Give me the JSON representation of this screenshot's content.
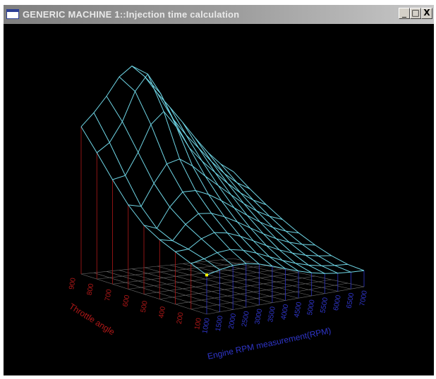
{
  "window": {
    "title": "GENERIC MACHINE 1::Injection time calculation",
    "controls": {
      "minimize": "_",
      "maximize": "□",
      "close": "X"
    }
  },
  "plot": {
    "background": "#000000",
    "surface_color": "#6fd6e6",
    "red_axis_color": "#b01818",
    "blue_axis_color": "#2f35c8",
    "marker_color": "#ffff00",
    "throttle_axis_label": "Throttle angle",
    "rpm_axis_label": "Engine RPM measurement(RPM)",
    "throttle_ticks": [
      "100",
      "200",
      "400",
      "500",
      "600",
      "700",
      "800",
      "900"
    ],
    "rpm_ticks": [
      "1000",
      "1500",
      "2000",
      "2500",
      "3000",
      "3500",
      "4000",
      "4500",
      "5000",
      "5500",
      "6000",
      "6500",
      "7000"
    ]
  }
}
